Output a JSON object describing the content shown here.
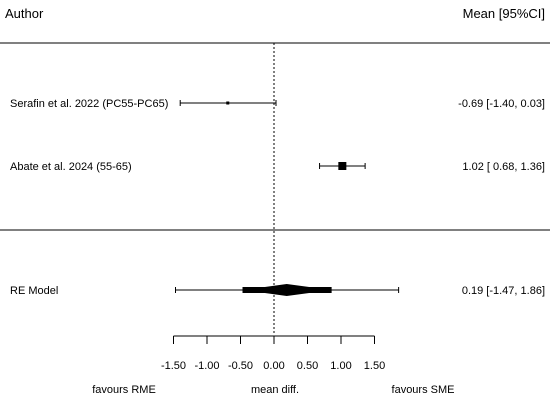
{
  "chart_data": {
    "type": "forest",
    "header": {
      "left": "Author",
      "right": "Mean [95%CI]"
    },
    "studies": [
      {
        "label": "Serafin et al. 2022 (PC55-PC65)",
        "estimate": -0.69,
        "ci_low": -1.4,
        "ci_high": 0.03,
        "text": "-0.69 [-1.40, 0.03]"
      },
      {
        "label": "Abate et al. 2024 (55-65)",
        "estimate": 1.02,
        "ci_low": 0.68,
        "ci_high": 1.36,
        "text": "1.02 [ 0.68, 1.36]"
      }
    ],
    "summary": {
      "label": "RE Model",
      "estimate": 0.19,
      "ci_low": -0.47,
      "ci_high": 0.86,
      "pi_low": -1.47,
      "pi_high": 1.86,
      "text": "0.19 [-1.47, 1.86]"
    },
    "xaxis": {
      "ticks": [
        -1.5,
        -1.0,
        -0.5,
        0.0,
        0.5,
        1.0,
        1.5
      ],
      "tick_labels": [
        "-1.50",
        "-1.00",
        "-0.50",
        "0.00",
        "0.50",
        "1.00",
        "1.50"
      ],
      "label": "mean diff.",
      "reference_line": 0,
      "favours_left": "favours RME",
      "favours_right": "favours SME"
    }
  }
}
